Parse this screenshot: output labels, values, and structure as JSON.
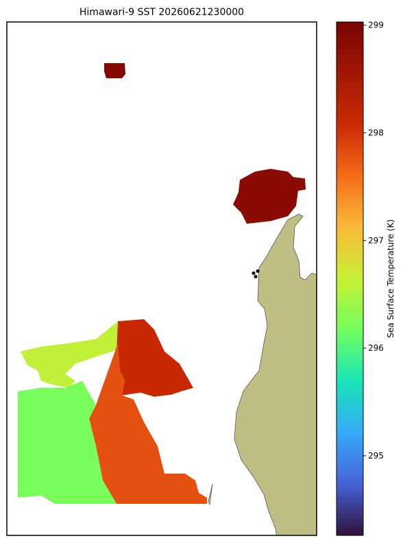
{
  "chart_data": {
    "type": "map",
    "title": "Himawari-9 SST 20260621230000",
    "colorbar": {
      "label": "Sea Surface Temperature (K)",
      "colormap": "turbo",
      "clim": [
        294.26,
        299.03
      ],
      "ticks": [
        295,
        296,
        297,
        298,
        299
      ]
    },
    "regions": [
      {
        "value": 298.9
      },
      {
        "value": 298.85
      },
      {
        "value": 298.1
      },
      {
        "value": 296.6
      },
      {
        "value": 297.8
      },
      {
        "value": 296.2
      }
    ]
  }
}
